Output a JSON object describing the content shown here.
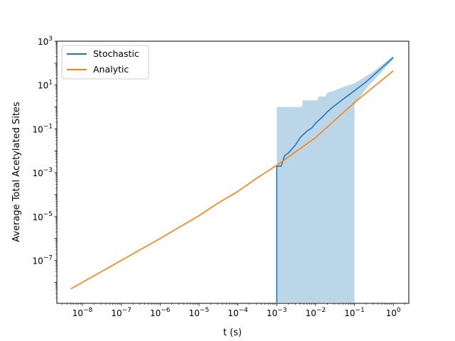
{
  "chart_data": {
    "type": "line",
    "title": "",
    "xlabel": "t (s)",
    "ylabel": "Average Total Acetylated Sites",
    "xscale": "log",
    "yscale": "log",
    "xlim": [
      2.2e-09,
      2.5
    ],
    "ylim": [
      1.1e-09,
      1000
    ],
    "x_ticks": [
      {
        "value": 1e-08,
        "base": "10",
        "exp": "−8"
      },
      {
        "value": 1e-07,
        "base": "10",
        "exp": "−7"
      },
      {
        "value": 1e-06,
        "base": "10",
        "exp": "−6"
      },
      {
        "value": 1e-05,
        "base": "10",
        "exp": "−5"
      },
      {
        "value": 0.0001,
        "base": "10",
        "exp": "−4"
      },
      {
        "value": 0.001,
        "base": "10",
        "exp": "−3"
      },
      {
        "value": 0.01,
        "base": "10",
        "exp": "−2"
      },
      {
        "value": 0.1,
        "base": "10",
        "exp": "−1"
      },
      {
        "value": 1,
        "base": "10",
        "exp": "0"
      }
    ],
    "y_ticks": [
      {
        "value": 1e-07,
        "base": "10",
        "exp": "−7"
      },
      {
        "value": 1e-05,
        "base": "10",
        "exp": "−5"
      },
      {
        "value": 0.001,
        "base": "10",
        "exp": "−3"
      },
      {
        "value": 0.1,
        "base": "10",
        "exp": "−1"
      },
      {
        "value": 10,
        "base": "10",
        "exp": "1"
      },
      {
        "value": 1000,
        "base": "10",
        "exp": "3"
      }
    ],
    "grid": false,
    "legend_position": "upper-left",
    "series": [
      {
        "name": "Stochastic",
        "color": "#1f77b4",
        "points": [
          [
            0.001,
            1.2e-09
          ],
          [
            0.001,
            0.002
          ],
          [
            0.0013,
            0.002
          ],
          [
            0.0016,
            0.006
          ],
          [
            0.002,
            0.008
          ],
          [
            0.003,
            0.018
          ],
          [
            0.004,
            0.04
          ],
          [
            0.006,
            0.08
          ],
          [
            0.008,
            0.11
          ],
          [
            0.01,
            0.18
          ],
          [
            0.015,
            0.35
          ],
          [
            0.02,
            0.6
          ],
          [
            0.03,
            1.1
          ],
          [
            0.05,
            2.2
          ],
          [
            0.1,
            5.5
          ],
          [
            0.2,
            14
          ],
          [
            0.5,
            60
          ],
          [
            1.0,
            180
          ]
        ]
      },
      {
        "name": "Analytic",
        "color": "#ff7f0e",
        "points": [
          [
            5e-09,
            5e-09
          ],
          [
            1e-08,
            1e-08
          ],
          [
            1e-07,
            1e-07
          ],
          [
            1e-06,
            1e-06
          ],
          [
            1e-05,
            1.1e-05
          ],
          [
            3e-05,
            4e-05
          ],
          [
            0.0001,
            0.00014
          ],
          [
            0.0003,
            0.00055
          ],
          [
            0.001,
            0.0022
          ],
          [
            0.01,
            0.04
          ],
          [
            0.1,
            1.6
          ],
          [
            1.0,
            45
          ]
        ]
      }
    ],
    "band": {
      "color": "#1f77b4",
      "opacity": 0.3,
      "upper": [
        [
          0.001,
          1.0
        ],
        [
          0.0045,
          1.0
        ],
        [
          0.0046,
          2.0
        ],
        [
          0.011,
          2.0
        ],
        [
          0.012,
          3.0
        ],
        [
          0.018,
          3.0
        ],
        [
          0.02,
          4.5
        ],
        [
          0.03,
          5.5
        ],
        [
          0.05,
          8
        ],
        [
          0.1,
          12
        ],
        [
          0.2,
          25
        ],
        [
          0.3,
          40
        ],
        [
          0.5,
          80
        ],
        [
          1.0,
          220
        ]
      ],
      "lower": [
        [
          1.0,
          150
        ],
        [
          0.5,
          40
        ],
        [
          0.2,
          7
        ],
        [
          0.15,
          3.5
        ],
        [
          0.1,
          1.2
        ],
        [
          0.1,
          1.2e-09
        ],
        [
          0.001,
          1.2e-09
        ]
      ]
    }
  }
}
